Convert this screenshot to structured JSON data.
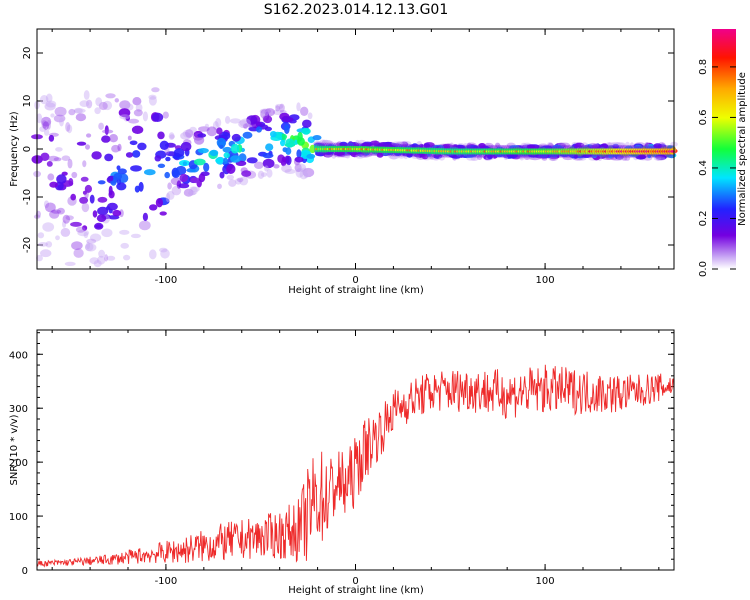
{
  "title": "S162.2023.014.12.13.G01",
  "colors": {
    "snr_line": "#ee2a2a",
    "frame": "#000000"
  },
  "chart_data": [
    {
      "type": "heatmap",
      "xlabel": "Height of straight line (km)",
      "ylabel": "Frequency (Hz)",
      "xlim": [
        -168,
        168
      ],
      "ylim": [
        -25,
        25
      ],
      "x_ticks": [
        -100,
        0,
        100
      ],
      "y_ticks": [
        -20,
        -10,
        0,
        10,
        20
      ],
      "x_tick_labels": [
        "-100",
        "0",
        "100"
      ],
      "y_tick_labels": [
        "-20",
        "-10",
        "0",
        "10",
        "20"
      ],
      "colorbar": {
        "label": "Normalized spectral amplitude",
        "range": [
          0,
          0.95
        ],
        "ticks": [
          "0.0",
          "0.2",
          "0.4",
          "0.6",
          "0.8"
        ],
        "tick_values": [
          0.0,
          0.2,
          0.4,
          0.6,
          0.8
        ],
        "colormap": "rainbow (white-violet-blue-cyan-green-yellow-orange-red-magenta)"
      },
      "frequency_ridge": {
        "description_points_x": [
          -150,
          -120,
          -100,
          -80,
          -60,
          -40,
          -30,
          -20,
          0,
          50,
          100,
          168
        ],
        "description_points_freq": [
          -6,
          -6,
          -4,
          -2,
          0,
          2,
          2,
          0,
          0,
          -0.5,
          -0.5,
          -0.5
        ],
        "amplitude_along_ridge": [
          0.15,
          0.3,
          0.3,
          0.4,
          0.4,
          0.45,
          0.5,
          0.55,
          0.6,
          0.55,
          0.6,
          0.85
        ]
      },
      "grid": false
    },
    {
      "type": "line",
      "xlabel": "Height of straight line (km)",
      "ylabel": "SNR (10 * v/v)",
      "xlim": [
        -168,
        168
      ],
      "ylim": [
        0,
        445
      ],
      "x_ticks": [
        -100,
        0,
        100
      ],
      "y_ticks": [
        0,
        100,
        200,
        300,
        400
      ],
      "x_tick_labels": [
        "-100",
        "0",
        "100"
      ],
      "y_tick_labels": [
        "0",
        "100",
        "200",
        "300",
        "400"
      ],
      "series": [
        {
          "x": [
            -168,
            -150,
            -130,
            -110,
            -90,
            -70,
            -50,
            -40,
            -30,
            -25,
            -20,
            -15,
            -10,
            -5,
            0,
            5,
            10,
            15,
            20,
            30,
            40,
            60,
            80,
            100,
            120,
            140,
            168
          ],
          "mean": [
            12,
            15,
            20,
            30,
            40,
            55,
            65,
            70,
            80,
            110,
            150,
            140,
            170,
            160,
            190,
            230,
            250,
            270,
            300,
            320,
            335,
            340,
            330,
            340,
            335,
            330,
            345
          ],
          "amp": [
            8,
            10,
            15,
            25,
            40,
            55,
            60,
            70,
            90,
            140,
            150,
            120,
            100,
            100,
            100,
            90,
            80,
            70,
            60,
            60,
            60,
            65,
            70,
            70,
            65,
            55,
            35
          ]
        }
      ],
      "grid": false
    }
  ]
}
